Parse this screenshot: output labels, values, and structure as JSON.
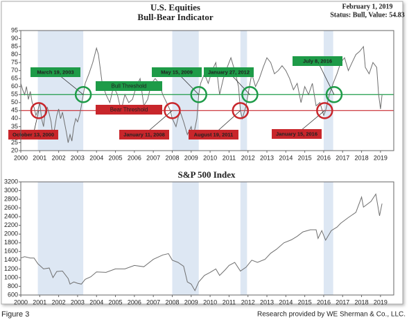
{
  "chart_data": [
    {
      "type": "line",
      "title": "U.S. Equities",
      "subtitle": "Bull-Bear Indicator",
      "date": "February 1, 2019",
      "status": "Status: Bull, Value: 54.83",
      "ylim": [
        20,
        95
      ],
      "yticks": [
        20,
        25,
        30,
        35,
        40,
        45,
        50,
        55,
        60,
        65,
        70,
        75,
        80,
        85,
        90,
        95
      ],
      "xlim": [
        2000,
        2019.7
      ],
      "xticks": [
        2000,
        2001,
        2002,
        2003,
        2004,
        2005,
        2006,
        2007,
        2008,
        2009,
        2010,
        2011,
        2012,
        2013,
        2014,
        2015,
        2016,
        2017,
        2018,
        2019
      ],
      "shaded_periods": [
        [
          2000.9,
          2003.3
        ],
        [
          2008.0,
          2009.4
        ],
        [
          2011.6,
          2011.95
        ],
        [
          2016.0,
          2016.5
        ]
      ],
      "shade_color": "#dde7f3",
      "thresholds": [
        {
          "name": "Bull Threshold",
          "value": 55,
          "color": "#1e9b48"
        },
        {
          "name": "Bear Threshold",
          "value": 45,
          "color": "#c8262b"
        }
      ],
      "annotations": [
        {
          "label": "October 13, 2000",
          "x": 2000.95,
          "y": 45,
          "color": "#c8262b"
        },
        {
          "label": "March 19, 2003",
          "x": 2003.3,
          "y": 55,
          "color": "#1e9b48"
        },
        {
          "label": "January 11, 2008",
          "x": 2008.0,
          "y": 45,
          "color": "#c8262b"
        },
        {
          "label": "May 15, 2009",
          "x": 2009.4,
          "y": 55,
          "color": "#1e9b48"
        },
        {
          "label": "August 19, 2011",
          "x": 2011.6,
          "y": 45,
          "color": "#c8262b"
        },
        {
          "label": "January 27, 2012",
          "x": 2012.1,
          "y": 55,
          "color": "#1e9b48"
        },
        {
          "label": "January 15, 2016",
          "x": 2016.05,
          "y": 45,
          "color": "#c8262b"
        },
        {
          "label": "July 8, 2016",
          "x": 2016.55,
          "y": 55,
          "color": "#1e9b48"
        }
      ],
      "series": [
        {
          "color": "#6f6f6f",
          "x": [
            2000.0,
            2000.1,
            2000.2,
            2000.3,
            2000.4,
            2000.5,
            2000.6,
            2000.7,
            2000.8,
            2000.9,
            2001.0,
            2001.1,
            2001.2,
            2001.3,
            2001.4,
            2001.5,
            2001.6,
            2001.7,
            2001.8,
            2001.9,
            2002.0,
            2002.1,
            2002.2,
            2002.3,
            2002.4,
            2002.5,
            2002.6,
            2002.7,
            2002.8,
            2002.9,
            2003.0,
            2003.1,
            2003.2,
            2003.3,
            2003.4,
            2003.6,
            2003.8,
            2004.0,
            2004.1,
            2004.3,
            2004.5,
            2004.7,
            2004.9,
            2005.1,
            2005.3,
            2005.5,
            2005.7,
            2005.9,
            2006.1,
            2006.3,
            2006.5,
            2006.7,
            2006.9,
            2007.1,
            2007.3,
            2007.5,
            2007.7,
            2007.9,
            2008.0,
            2008.2,
            2008.4,
            2008.6,
            2008.8,
            2009.0,
            2009.1,
            2009.3,
            2009.4,
            2009.5,
            2009.7,
            2009.9,
            2010.1,
            2010.3,
            2010.5,
            2010.7,
            2010.9,
            2011.1,
            2011.3,
            2011.5,
            2011.6,
            2011.7,
            2011.9,
            2012.0,
            2012.2,
            2012.4,
            2012.6,
            2012.8,
            2013.0,
            2013.2,
            2013.4,
            2013.6,
            2013.8,
            2014.0,
            2014.2,
            2014.4,
            2014.6,
            2014.8,
            2015.0,
            2015.2,
            2015.4,
            2015.6,
            2015.8,
            2016.0,
            2016.1,
            2016.3,
            2016.5,
            2016.7,
            2016.9,
            2017.1,
            2017.3,
            2017.5,
            2017.7,
            2017.9,
            2018.1,
            2018.2,
            2018.4,
            2018.6,
            2018.8,
            2018.9,
            2019.0,
            2019.08
          ],
          "values": [
            62,
            58,
            55,
            60,
            52,
            57,
            50,
            47,
            42,
            45,
            50,
            40,
            35,
            45,
            47,
            43,
            38,
            28,
            35,
            42,
            46,
            40,
            44,
            38,
            32,
            25,
            30,
            26,
            35,
            40,
            38,
            42,
            48,
            55,
            62,
            68,
            75,
            84,
            80,
            62,
            55,
            50,
            60,
            55,
            45,
            55,
            50,
            52,
            60,
            65,
            48,
            52,
            62,
            65,
            62,
            55,
            50,
            45,
            40,
            35,
            45,
            38,
            30,
            35,
            28,
            40,
            55,
            62,
            68,
            62,
            70,
            75,
            55,
            65,
            72,
            78,
            70,
            60,
            45,
            40,
            48,
            55,
            68,
            60,
            65,
            72,
            78,
            75,
            68,
            70,
            73,
            70,
            65,
            58,
            62,
            50,
            60,
            55,
            62,
            48,
            50,
            42,
            45,
            55,
            62,
            68,
            75,
            78,
            70,
            75,
            80,
            82,
            85,
            72,
            68,
            75,
            72,
            55,
            46,
            54.83
          ]
        }
      ]
    },
    {
      "type": "line",
      "title": "S&P 500 Index",
      "ylim": [
        600,
        3200
      ],
      "yticks": [
        600,
        800,
        1000,
        1200,
        1400,
        1600,
        1800,
        2000,
        2200,
        2400,
        2600,
        2800,
        3000,
        3200
      ],
      "xlim": [
        2000,
        2019.7
      ],
      "xticks": [
        2000,
        2001,
        2002,
        2003,
        2004,
        2005,
        2006,
        2007,
        2008,
        2009,
        2010,
        2011,
        2012,
        2013,
        2014,
        2015,
        2016,
        2017,
        2018,
        2019
      ],
      "shaded_periods": [
        [
          2000.9,
          2003.3
        ],
        [
          2008.0,
          2009.4
        ],
        [
          2011.6,
          2011.95
        ],
        [
          2016.0,
          2016.5
        ]
      ],
      "shade_color": "#dde7f3",
      "series": [
        {
          "color": "#6f6f6f",
          "x": [
            2000.0,
            2000.2,
            2000.5,
            2000.7,
            2000.9,
            2001.2,
            2001.5,
            2001.7,
            2001.9,
            2002.2,
            2002.5,
            2002.6,
            2002.8,
            2003.0,
            2003.2,
            2003.4,
            2003.7,
            2004.0,
            2004.5,
            2005.0,
            2005.5,
            2006.0,
            2006.5,
            2007.0,
            2007.5,
            2007.8,
            2008.0,
            2008.3,
            2008.6,
            2008.8,
            2009.0,
            2009.2,
            2009.4,
            2009.7,
            2010.0,
            2010.3,
            2010.5,
            2010.8,
            2011.0,
            2011.3,
            2011.6,
            2011.9,
            2012.2,
            2012.5,
            2012.9,
            2013.2,
            2013.5,
            2013.9,
            2014.3,
            2014.6,
            2014.9,
            2015.3,
            2015.6,
            2015.7,
            2015.9,
            2016.1,
            2016.4,
            2016.7,
            2016.9,
            2017.3,
            2017.7,
            2018.0,
            2018.1,
            2018.5,
            2018.75,
            2018.95,
            2019.08
          ],
          "values": [
            1450,
            1480,
            1450,
            1450,
            1320,
            1200,
            1220,
            1000,
            1140,
            1150,
            980,
            850,
            900,
            870,
            850,
            960,
            1020,
            1130,
            1120,
            1200,
            1200,
            1280,
            1250,
            1420,
            1520,
            1550,
            1400,
            1350,
            1260,
            900,
            850,
            700,
            900,
            1050,
            1120,
            1200,
            1050,
            1180,
            1280,
            1350,
            1150,
            1240,
            1400,
            1350,
            1420,
            1560,
            1650,
            1800,
            1870,
            1950,
            2050,
            2100,
            2100,
            1900,
            2080,
            1860,
            2080,
            2160,
            2250,
            2380,
            2500,
            2850,
            2620,
            2750,
            2920,
            2420,
            2700
          ]
        }
      ]
    }
  ],
  "footer": {
    "figure": "Figure 3",
    "credit": "Research provided by WE Sherman & Co., LLC."
  }
}
